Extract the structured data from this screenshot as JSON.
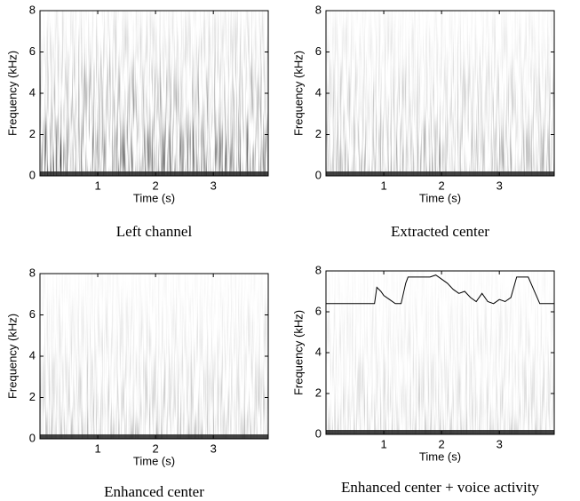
{
  "chart_data": [
    {
      "type": "spectrogram",
      "title": "Left channel",
      "xlabel": "Time (s)",
      "ylabel": "Frequency (kHz)",
      "xlim": [
        0,
        3.95
      ],
      "ylim": [
        0,
        8
      ],
      "xticks": [
        1,
        2,
        3
      ],
      "yticks": [
        0,
        2,
        4,
        6,
        8
      ]
    },
    {
      "type": "spectrogram",
      "title": "Extracted center",
      "xlabel": "Time (s)",
      "ylabel": "Frequency (kHz)",
      "xlim": [
        0,
        3.95
      ],
      "ylim": [
        0,
        8
      ],
      "xticks": [
        1,
        2,
        3
      ],
      "yticks": [
        0,
        2,
        4,
        6,
        8
      ]
    },
    {
      "type": "spectrogram",
      "title": "Enhanced center",
      "xlabel": "Time (s)",
      "ylabel": "Frequency (kHz)",
      "xlim": [
        0,
        3.95
      ],
      "ylim": [
        0,
        8
      ],
      "xticks": [
        1,
        2,
        3
      ],
      "yticks": [
        0,
        2,
        4,
        6,
        8
      ]
    },
    {
      "type": "spectrogram",
      "title": "Enhanced center + voice activity",
      "xlabel": "Time (s)",
      "ylabel": "Frequency (kHz)",
      "xlim": [
        0,
        3.95
      ],
      "ylim": [
        0,
        8
      ],
      "xticks": [
        1,
        2,
        3
      ],
      "yticks": [
        0,
        2,
        4,
        6,
        8
      ],
      "line": {
        "color": "#000000",
        "x": [
          0,
          0.84,
          0.88,
          0.95,
          1.0,
          1.1,
          1.2,
          1.3,
          1.38,
          1.42,
          1.8,
          1.9,
          2.0,
          2.1,
          2.2,
          2.3,
          2.4,
          2.5,
          2.6,
          2.7,
          2.8,
          2.9,
          3.0,
          3.1,
          3.2,
          3.3,
          3.5,
          3.7,
          3.95
        ],
        "values": [
          6.4,
          6.4,
          7.2,
          7.0,
          6.8,
          6.6,
          6.4,
          6.4,
          7.4,
          7.7,
          7.7,
          7.8,
          7.6,
          7.4,
          7.1,
          6.9,
          7.0,
          6.7,
          6.5,
          6.9,
          6.5,
          6.4,
          6.6,
          6.5,
          6.7,
          7.7,
          7.7,
          6.4,
          6.4
        ]
      }
    }
  ]
}
